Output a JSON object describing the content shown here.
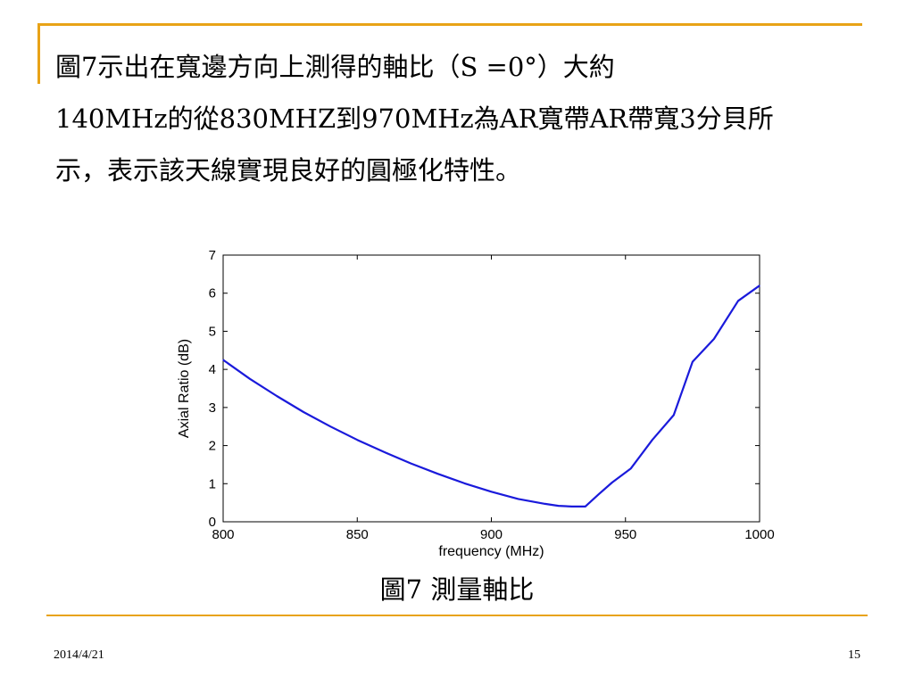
{
  "slide": {
    "lines": [
      "圖7示出在寬邊方向上測得的軸比（S =0°）大約",
      "140MHz的從830MHZ到970MHz為AR寬帶AR帶寬3分貝所",
      "示，表示該天線實現良好的圓極化特性。"
    ],
    "caption": "圖7 測量軸比",
    "date": "2014/4/21",
    "page_number": "15"
  },
  "colors": {
    "accent": "#e8a317",
    "curve": "#1a1adb"
  },
  "chart_data": {
    "type": "line",
    "xlabel": "frequency (MHz)",
    "ylabel": "Axial Ratio (dB)",
    "xlim": [
      800,
      1000
    ],
    "ylim": [
      0,
      7
    ],
    "xticks": [
      800,
      850,
      900,
      950,
      1000
    ],
    "yticks": [
      0,
      1,
      2,
      3,
      4,
      5,
      6,
      7
    ],
    "grid": false,
    "series": [
      {
        "x": [
          800,
          810,
          820,
          830,
          840,
          850,
          860,
          870,
          880,
          890,
          900,
          910,
          920,
          925,
          930,
          935,
          940,
          945,
          952,
          960,
          968,
          975,
          983,
          992,
          1000
        ],
        "y": [
          4.25,
          3.75,
          3.3,
          2.88,
          2.5,
          2.15,
          1.83,
          1.53,
          1.26,
          1.01,
          0.79,
          0.6,
          0.47,
          0.42,
          0.4,
          0.4,
          0.72,
          1.03,
          1.4,
          2.15,
          2.8,
          4.2,
          4.8,
          5.8,
          6.2
        ]
      }
    ]
  }
}
